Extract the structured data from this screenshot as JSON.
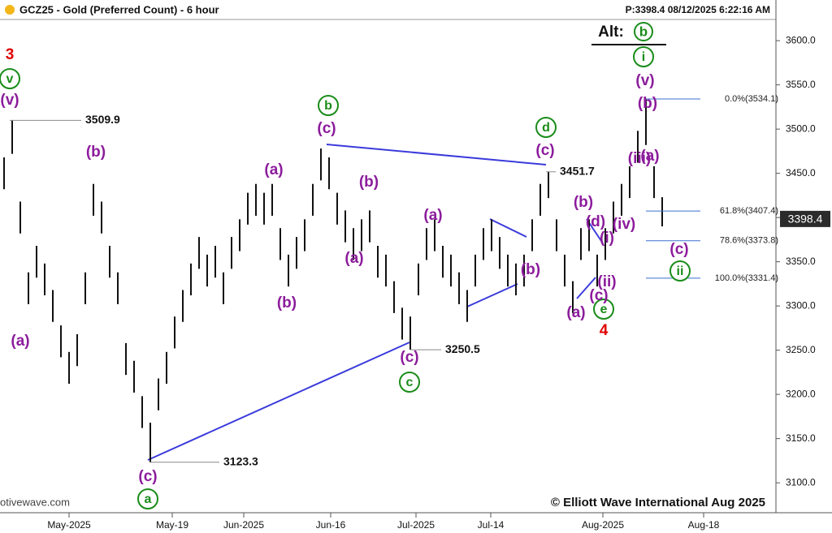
{
  "chart_data": {
    "type": "ohlc",
    "title": "GCZ25 - Gold (Preferred Count) - 6 hour",
    "status": "P:3398.4  08/12/2025 6:22:16 AM",
    "watermark": "otivewave.com",
    "copyright": "© Elliott Wave International Aug 2025",
    "alt_label": "Alt:",
    "alt_wave": "b",
    "color": "#111111",
    "x": [
      -8,
      -7,
      -6,
      -5,
      -4,
      -3,
      -2,
      -1,
      0,
      1,
      2,
      3,
      4,
      5,
      6,
      7,
      8,
      9,
      10,
      11,
      12,
      13,
      14,
      15,
      16,
      17,
      18,
      19,
      20,
      21,
      22,
      23,
      24,
      25,
      26,
      27,
      28,
      29,
      30,
      31,
      32,
      33,
      34,
      35,
      36,
      37,
      38,
      39,
      40,
      41,
      42,
      43,
      44,
      45,
      46,
      47,
      48,
      49,
      50,
      51,
      52,
      53,
      54,
      55,
      56,
      57,
      58,
      59,
      60,
      61,
      62,
      63,
      64,
      65,
      66,
      67,
      68,
      69,
      70,
      71,
      72,
      73
    ],
    "high": [
      3468,
      3509.9,
      3418,
      3338,
      3368,
      3348,
      3318,
      3278,
      3248,
      3268,
      3338,
      3438,
      3418,
      3368,
      3338,
      3258,
      3238,
      3198,
      3168,
      3218,
      3248,
      3288,
      3318,
      3348,
      3378,
      3358,
      3368,
      3338,
      3378,
      3398,
      3428,
      3438,
      3428,
      3438,
      3388,
      3358,
      3378,
      3398,
      3438,
      3478,
      3468,
      3428,
      3408,
      3388,
      3398,
      3408,
      3368,
      3358,
      3328,
      3298,
      3288,
      3348,
      3388,
      3398,
      3368,
      3358,
      3338,
      3318,
      3358,
      3388,
      3398,
      3378,
      3358,
      3348,
      3358,
      3398,
      3438,
      3451.7,
      3398,
      3358,
      3328,
      3388,
      3398,
      3358,
      3388,
      3418,
      3438,
      3458,
      3498,
      3534.1,
      3458,
      3423
    ],
    "low": [
      3432,
      3472,
      3382,
      3302,
      3332,
      3312,
      3282,
      3242,
      3212,
      3232,
      3302,
      3402,
      3382,
      3332,
      3302,
      3222,
      3202,
      3162,
      3123.3,
      3182,
      3212,
      3252,
      3282,
      3312,
      3342,
      3322,
      3332,
      3302,
      3342,
      3362,
      3392,
      3402,
      3392,
      3402,
      3352,
      3322,
      3342,
      3362,
      3402,
      3442,
      3432,
      3392,
      3372,
      3352,
      3362,
      3372,
      3332,
      3322,
      3292,
      3262,
      3250.5,
      3312,
      3352,
      3362,
      3332,
      3322,
      3302,
      3282,
      3322,
      3352,
      3362,
      3342,
      3322,
      3312,
      3322,
      3362,
      3402,
      3422,
      3362,
      3322,
      3292,
      3352,
      3362,
      3322,
      3352,
      3382,
      3402,
      3422,
      3462,
      3482,
      3422,
      3390
    ],
    "last_price": 3398.4,
    "xlim": [
      -8.5,
      87
    ],
    "xticks": [
      {
        "value": 0,
        "label": "May-2025"
      },
      {
        "value": 12.7,
        "label": "May-19"
      },
      {
        "value": 21.5,
        "label": "Jun-2025"
      },
      {
        "value": 32.2,
        "label": "Jun-16"
      },
      {
        "value": 42.7,
        "label": "Jul-2025"
      },
      {
        "value": 51.9,
        "label": "Jul-14"
      },
      {
        "value": 65.7,
        "label": "Aug-2025"
      },
      {
        "value": 78.1,
        "label": "Aug-18"
      }
    ],
    "ylim": [
      3068,
      3646
    ],
    "yticks": [
      {
        "value": 3100,
        "label": "3100.0"
      },
      {
        "value": 3150,
        "label": "3150.0"
      },
      {
        "value": 3200,
        "label": "3200.0"
      },
      {
        "value": 3250,
        "label": "3250.0"
      },
      {
        "value": 3300,
        "label": "3300.0"
      },
      {
        "value": 3350,
        "label": "3350.0"
      },
      {
        "value": 3400,
        "label": "3400.0"
      },
      {
        "value": 3450,
        "label": "3450.0"
      },
      {
        "value": 3500,
        "label": "3500.0"
      },
      {
        "value": 3550,
        "label": "3550.0"
      },
      {
        "value": 3600,
        "label": "3600.0"
      }
    ],
    "fib_levels": [
      {
        "value": 3534.1,
        "label": "0.0%(3534.1)"
      },
      {
        "value": 3407.4,
        "label": "61.8%(3407.4)"
      },
      {
        "value": 3373.8,
        "label": "78.6%(3373.8)"
      },
      {
        "value": 3331.4,
        "label": "100.0%(3331.4)"
      }
    ],
    "annotations": [
      {
        "text": "3",
        "color": "#e00000"
      },
      {
        "text": "v",
        "color": "#1a8c1a"
      },
      {
        "text": "(v)",
        "color": "#8c1c9c"
      },
      {
        "text": "(a)",
        "color": "#8c1c9c"
      },
      {
        "text": "(b)",
        "color": "#8c1c9c"
      },
      {
        "text": "(c)",
        "color": "#8c1c9c"
      },
      {
        "text": "a",
        "color": "#1a8c1a"
      },
      {
        "text": "(a)",
        "color": "#8c1c9c"
      },
      {
        "text": "(b)",
        "color": "#8c1c9c"
      },
      {
        "text": "b",
        "color": "#1a8c1a"
      },
      {
        "text": "(c)",
        "color": "#8c1c9c"
      },
      {
        "text": "(b)",
        "color": "#8c1c9c"
      },
      {
        "text": "(a)",
        "color": "#8c1c9c"
      },
      {
        "text": "(a)",
        "color": "#8c1c9c"
      },
      {
        "text": "(c)",
        "color": "#8c1c9c"
      },
      {
        "text": "c",
        "color": "#1a8c1a"
      },
      {
        "text": "(b)",
        "color": "#8c1c9c"
      },
      {
        "text": "d",
        "color": "#1a8c1a"
      },
      {
        "text": "(c)",
        "color": "#8c1c9c"
      },
      {
        "text": "(a)",
        "color": "#8c1c9c"
      },
      {
        "text": "4",
        "color": "#e00000"
      },
      {
        "text": "e",
        "color": "#1a8c1a"
      },
      {
        "text": "(c)",
        "color": "#8c1c9c"
      },
      {
        "text": "(ii)",
        "color": "#8c1c9c"
      },
      {
        "text": "(i)",
        "color": "#8c1c9c"
      },
      {
        "text": "(d)",
        "color": "#8c1c9c"
      },
      {
        "text": "(b)",
        "color": "#8c1c9c"
      },
      {
        "text": "(iv)",
        "color": "#8c1c9c"
      },
      {
        "text": "(iii)",
        "color": "#8c1c9c"
      },
      {
        "text": "(a)",
        "color": "#8c1c9c"
      },
      {
        "text": "(b)",
        "color": "#8c1c9c"
      },
      {
        "text": "(v)",
        "color": "#8c1c9c"
      },
      {
        "text": "i",
        "color": "#1a8c1a"
      },
      {
        "text": "(c)",
        "color": "#8c1c9c"
      },
      {
        "text": "ii",
        "color": "#1a8c1a"
      }
    ]
  }
}
